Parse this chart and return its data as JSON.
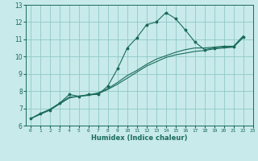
{
  "title": "",
  "xlabel": "Humidex (Indice chaleur)",
  "ylabel": "",
  "bg_color": "#c8eaea",
  "grid_color": "#90c8c8",
  "line_color": "#1a6b5a",
  "xlim": [
    -0.5,
    23
  ],
  "ylim": [
    6,
    13
  ],
  "xticks": [
    0,
    1,
    2,
    3,
    4,
    5,
    6,
    7,
    8,
    9,
    10,
    11,
    12,
    13,
    14,
    15,
    16,
    17,
    18,
    19,
    20,
    21,
    22,
    23
  ],
  "yticks": [
    6,
    7,
    8,
    9,
    10,
    11,
    12,
    13
  ],
  "series1": [
    [
      0,
      6.4
    ],
    [
      1,
      6.7
    ],
    [
      2,
      6.9
    ],
    [
      3,
      7.3
    ],
    [
      4,
      7.8
    ],
    [
      5,
      7.7
    ],
    [
      6,
      7.8
    ],
    [
      7,
      7.8
    ],
    [
      8,
      8.3
    ],
    [
      9,
      9.3
    ],
    [
      10,
      10.5
    ],
    [
      11,
      11.1
    ],
    [
      12,
      11.85
    ],
    [
      13,
      12.0
    ],
    [
      14,
      12.55
    ],
    [
      15,
      12.2
    ],
    [
      16,
      11.55
    ],
    [
      17,
      10.85
    ],
    [
      18,
      10.4
    ],
    [
      19,
      10.5
    ],
    [
      20,
      10.55
    ],
    [
      21,
      10.55
    ],
    [
      22,
      11.15
    ]
  ],
  "series2": [
    [
      0,
      6.4
    ],
    [
      1,
      6.65
    ],
    [
      2,
      6.9
    ],
    [
      3,
      7.25
    ],
    [
      4,
      7.6
    ],
    [
      5,
      7.7
    ],
    [
      6,
      7.75
    ],
    [
      7,
      7.85
    ],
    [
      8,
      8.1
    ],
    [
      9,
      8.4
    ],
    [
      10,
      8.75
    ],
    [
      11,
      9.1
    ],
    [
      12,
      9.45
    ],
    [
      13,
      9.7
    ],
    [
      14,
      9.95
    ],
    [
      15,
      10.1
    ],
    [
      16,
      10.2
    ],
    [
      17,
      10.3
    ],
    [
      18,
      10.35
    ],
    [
      19,
      10.45
    ],
    [
      20,
      10.5
    ],
    [
      21,
      10.55
    ],
    [
      22,
      11.1
    ]
  ],
  "series3": [
    [
      0,
      6.4
    ],
    [
      1,
      6.7
    ],
    [
      2,
      6.95
    ],
    [
      3,
      7.3
    ],
    [
      4,
      7.65
    ],
    [
      5,
      7.7
    ],
    [
      6,
      7.78
    ],
    [
      7,
      7.9
    ],
    [
      8,
      8.15
    ],
    [
      9,
      8.5
    ],
    [
      10,
      8.9
    ],
    [
      11,
      9.2
    ],
    [
      12,
      9.55
    ],
    [
      13,
      9.85
    ],
    [
      14,
      10.05
    ],
    [
      15,
      10.25
    ],
    [
      16,
      10.4
    ],
    [
      17,
      10.5
    ],
    [
      18,
      10.5
    ],
    [
      19,
      10.55
    ],
    [
      20,
      10.6
    ],
    [
      21,
      10.6
    ],
    [
      22,
      11.2
    ]
  ]
}
